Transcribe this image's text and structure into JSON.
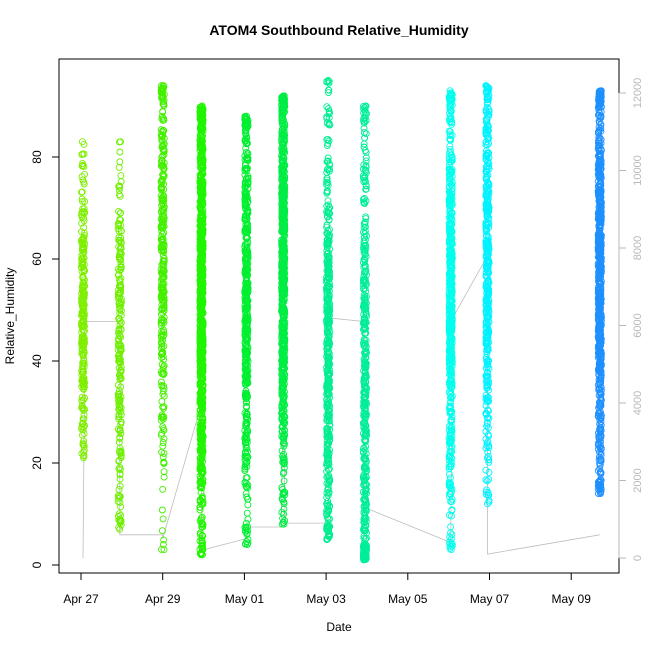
{
  "chart_data": {
    "type": "scatter",
    "title": "ATOM4 Southbound Relative_Humidity",
    "xlabel": "Date",
    "ylabel": "Relative_Humidity",
    "x_ticks": [
      "Apr 27",
      "Apr 29",
      "May 01",
      "May 03",
      "May 05",
      "May 07",
      "May 09"
    ],
    "x_tick_days": [
      0,
      2,
      4,
      6,
      8,
      10,
      12
    ],
    "y_ticks": [
      0,
      20,
      40,
      60,
      80
    ],
    "ylim": [
      0,
      95
    ],
    "y2_ticks": [
      0,
      2000,
      4000,
      6000,
      8000,
      10000,
      12000
    ],
    "y2lim": [
      0,
      12000
    ],
    "grid": false,
    "legend": "none",
    "colors": {
      "gray_line": "#bdbdbd",
      "axis": "#000000",
      "right_axis": "#b8b8b8"
    },
    "series": [
      {
        "day": 0.05,
        "ymin": 21,
        "ymax": 83,
        "center": 48,
        "spread": 14,
        "color": "#7FEF00",
        "points": 260
      },
      {
        "day": 0.95,
        "ymin": 7,
        "ymax": 83,
        "center": 40,
        "spread": 18,
        "color": "#6FEF00",
        "points": 220
      },
      {
        "day": 2.0,
        "ymin": 3,
        "ymax": 94,
        "center": 60,
        "spread": 22,
        "color": "#44F000",
        "points": 320
      },
      {
        "day": 2.95,
        "ymin": 2,
        "ymax": 90,
        "center": 50,
        "spread": 22,
        "color": "#20F500",
        "points": 900
      },
      {
        "day": 4.05,
        "ymin": 4,
        "ymax": 88,
        "center": 55,
        "spread": 22,
        "color": "#00F030",
        "points": 500
      },
      {
        "day": 4.95,
        "ymin": 8,
        "ymax": 92,
        "center": 60,
        "spread": 20,
        "color": "#00EE44",
        "points": 800
      },
      {
        "day": 6.05,
        "ymin": 5,
        "ymax": 95,
        "center": 40,
        "spread": 22,
        "color": "#00EE90",
        "points": 450
      },
      {
        "day": 6.95,
        "ymin": 1,
        "ymax": 90,
        "center": 30,
        "spread": 30,
        "color": "#00EE99",
        "points": 480
      },
      {
        "day": 9.05,
        "ymin": 3,
        "ymax": 93,
        "center": 55,
        "spread": 22,
        "color": "#00FFEE",
        "points": 550
      },
      {
        "day": 9.95,
        "ymin": 12,
        "ymax": 94,
        "center": 60,
        "spread": 20,
        "color": "#00F2FF",
        "points": 420
      },
      {
        "day": 12.7,
        "ymin": 14,
        "ymax": 93,
        "center": 55,
        "spread": 20,
        "color": "#1E90FF",
        "points": 700
      }
    ],
    "index_line": [
      {
        "day": 0.05,
        "y2": 0
      },
      {
        "day": 0.1,
        "y2": 6100
      },
      {
        "day": 0.95,
        "y2": 6100
      },
      {
        "day": 0.95,
        "y2": 600
      },
      {
        "day": 2.0,
        "y2": 600
      },
      {
        "day": 2.0,
        "y2": 500
      },
      {
        "day": 2.9,
        "y2": 3800
      },
      {
        "day": 2.95,
        "y2": 3800
      },
      {
        "day": 2.95,
        "y2": 200
      },
      {
        "day": 4.05,
        "y2": 500
      },
      {
        "day": 4.1,
        "y2": 800
      },
      {
        "day": 4.9,
        "y2": 800
      },
      {
        "day": 4.95,
        "y2": 3800
      },
      {
        "day": 5.0,
        "y2": 900
      },
      {
        "day": 6.05,
        "y2": 900
      },
      {
        "day": 6.05,
        "y2": 6200
      },
      {
        "day": 6.95,
        "y2": 6100
      },
      {
        "day": 6.95,
        "y2": 1300
      },
      {
        "day": 9.05,
        "y2": 400
      },
      {
        "day": 9.1,
        "y2": 6200
      },
      {
        "day": 9.95,
        "y2": 7800
      },
      {
        "day": 9.95,
        "y2": 100
      },
      {
        "day": 12.7,
        "y2": 600
      }
    ]
  }
}
